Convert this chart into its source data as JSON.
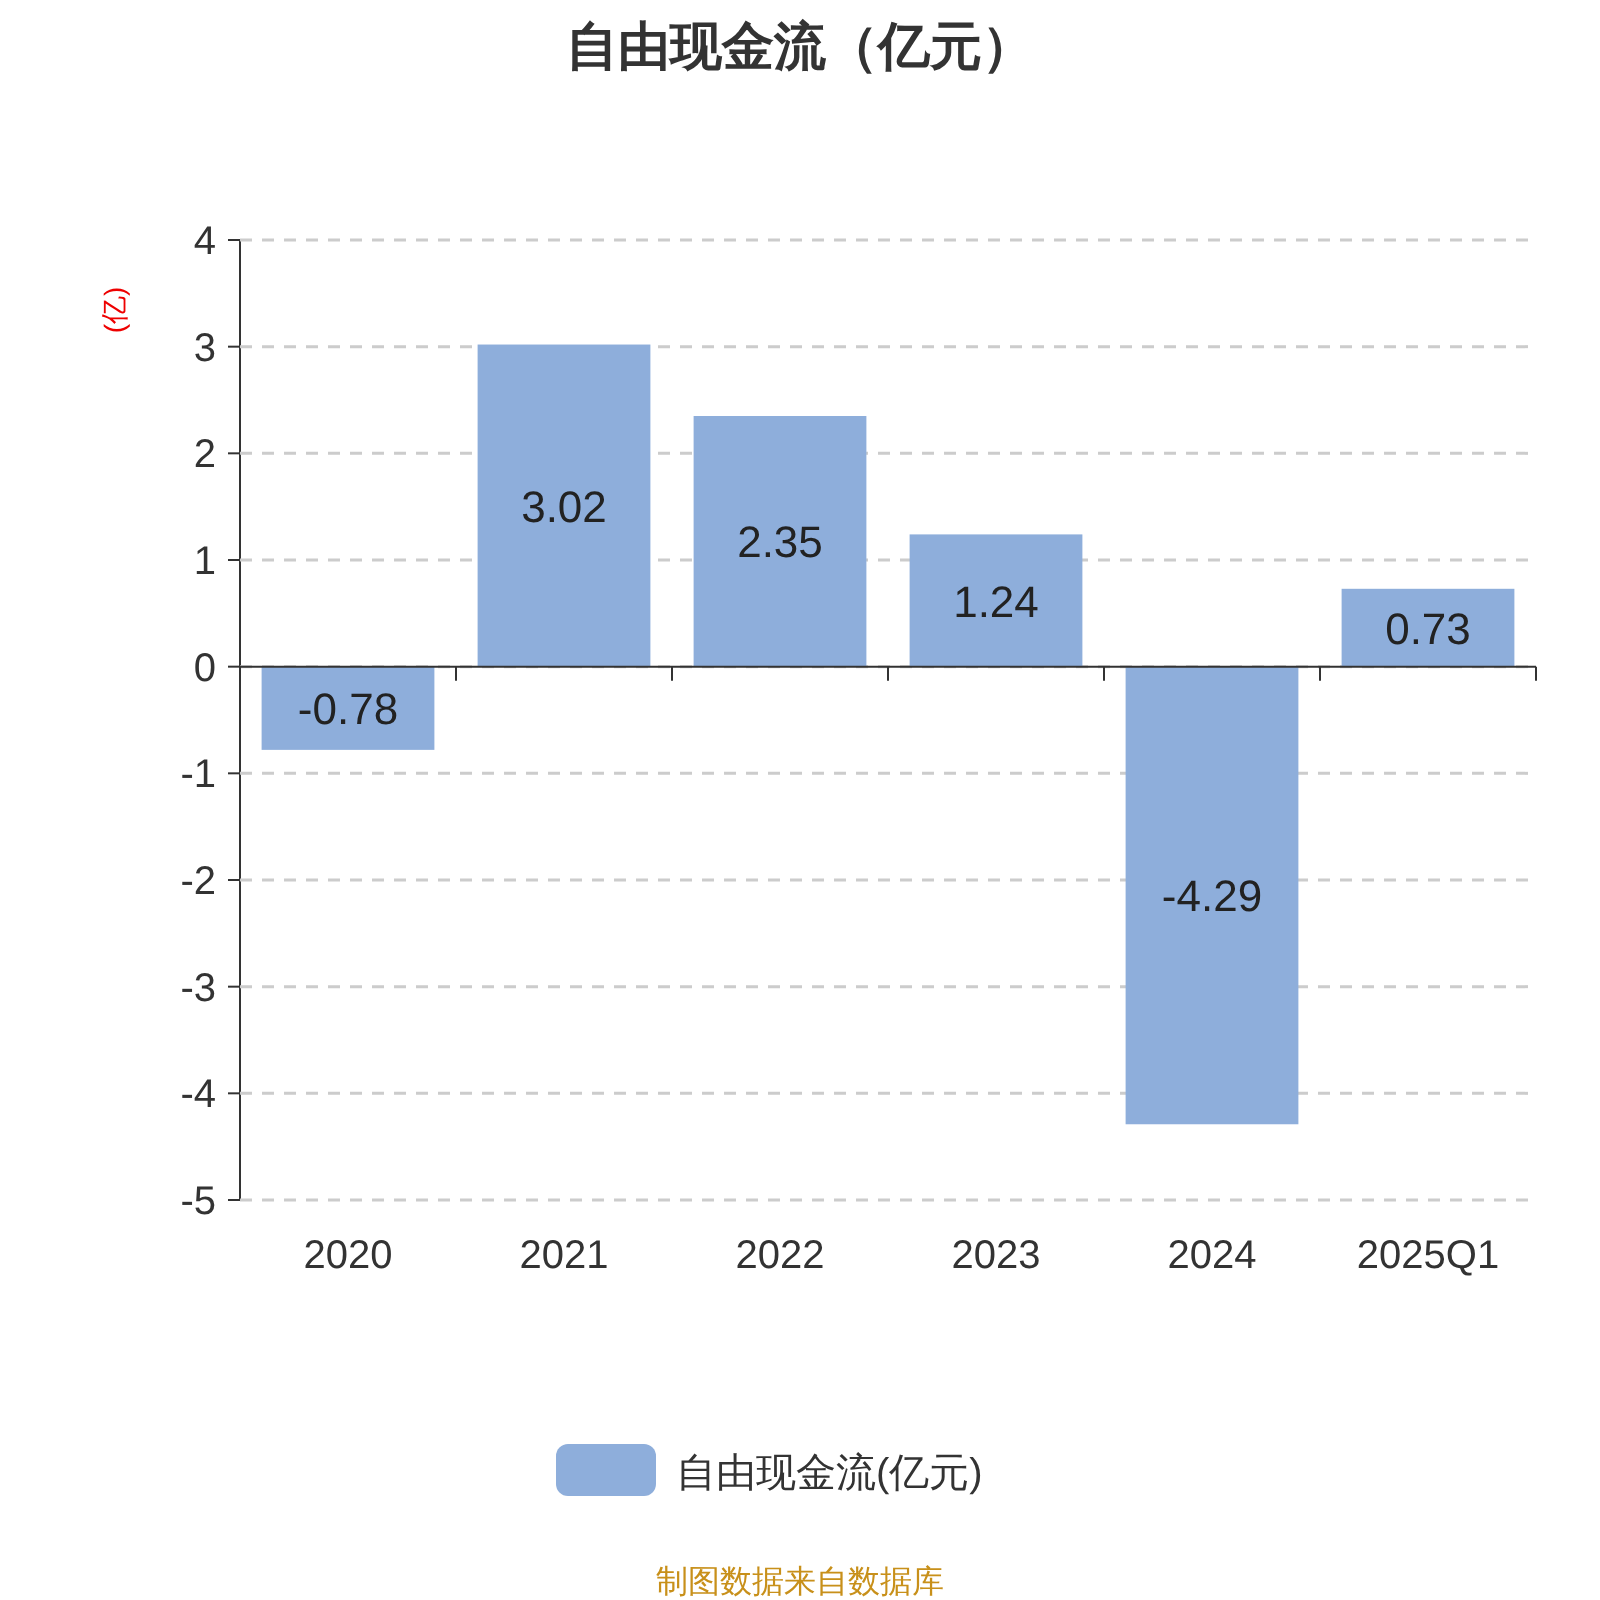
{
  "chart_data": {
    "type": "bar",
    "title": "自由现金流（亿元）",
    "ylabel": "(亿)",
    "categories": [
      "2020",
      "2021",
      "2022",
      "2023",
      "2024",
      "2025Q1"
    ],
    "series": [
      {
        "name": "自由现金流(亿元)",
        "color": "#8eaedb",
        "values": [
          -0.78,
          3.02,
          2.35,
          1.24,
          -4.29,
          0.73
        ]
      }
    ],
    "ylim": [
      -5,
      4
    ],
    "yticks": [
      -5,
      -4,
      -3,
      -2,
      -1,
      0,
      1,
      2,
      3,
      4
    ],
    "grid": "y",
    "legend": "bottom",
    "data_labels": true,
    "annotations": [
      "制图数据来自数据库"
    ]
  }
}
